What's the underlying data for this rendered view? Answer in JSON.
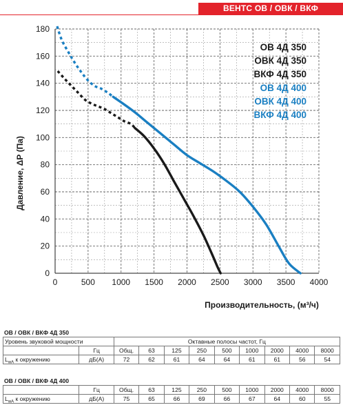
{
  "header": {
    "badge": "ВЕНТС ОВ / ОВК / ВКФ"
  },
  "chart_data": {
    "type": "line",
    "xlabel": "Производительность, (м³/ч)",
    "ylabel": "Давление, ΔР (Па)",
    "xlim": [
      0,
      4000
    ],
    "ylim": [
      0,
      180
    ],
    "xticks": [
      0,
      500,
      1000,
      1500,
      2000,
      2500,
      3000,
      3500,
      4000
    ],
    "yticks": [
      0,
      20,
      40,
      60,
      80,
      100,
      120,
      140,
      160,
      180
    ],
    "grid": true,
    "legend_placement": "top-right",
    "series": [
      {
        "name_lines": [
          "ОВ 4Д 350",
          "ОВК 4Д 350",
          "ВКФ 4Д 350"
        ],
        "color": "#1a1a1a",
        "dashed": [
          [
            40,
            149
          ],
          [
            150,
            143
          ],
          [
            250,
            138
          ],
          [
            350,
            133
          ],
          [
            450,
            128
          ],
          [
            550,
            125
          ],
          [
            650,
            123
          ],
          [
            750,
            121
          ],
          [
            850,
            118
          ],
          [
            950,
            115
          ],
          [
            1050,
            112
          ],
          [
            1150,
            110
          ],
          [
            1210,
            107
          ]
        ],
        "solid": [
          [
            1210,
            107
          ],
          [
            1350,
            101
          ],
          [
            1500,
            92
          ],
          [
            1650,
            81
          ],
          [
            1800,
            68
          ],
          [
            1950,
            55
          ],
          [
            2100,
            42
          ],
          [
            2250,
            28
          ],
          [
            2380,
            14
          ],
          [
            2460,
            5
          ],
          [
            2510,
            0
          ]
        ]
      },
      {
        "name_lines": [
          "ОВ 4Д 400",
          "ОВК 4Д 400",
          "ВКФ 4Д 400"
        ],
        "color": "#1a7fc2",
        "dashed": [
          [
            30,
            182
          ],
          [
            100,
            172
          ],
          [
            200,
            163
          ],
          [
            300,
            155
          ],
          [
            400,
            148
          ],
          [
            500,
            142
          ],
          [
            600,
            138
          ],
          [
            700,
            136
          ],
          [
            800,
            133
          ],
          [
            880,
            130
          ]
        ],
        "solid": [
          [
            880,
            130
          ],
          [
            1000,
            126
          ],
          [
            1200,
            119
          ],
          [
            1400,
            111
          ],
          [
            1600,
            103
          ],
          [
            1800,
            95
          ],
          [
            2000,
            87
          ],
          [
            2200,
            81
          ],
          [
            2400,
            75
          ],
          [
            2600,
            68
          ],
          [
            2800,
            60
          ],
          [
            3000,
            49
          ],
          [
            3200,
            36
          ],
          [
            3400,
            19
          ],
          [
            3550,
            7
          ],
          [
            3720,
            0
          ]
        ]
      }
    ]
  },
  "tables": [
    {
      "title": "ОВ / ОВК / ВКФ 4Д 350",
      "row1_label": "Уровень звуковой мощности",
      "row1_bands": "Октавные полосы частот, Гц",
      "row2_unit": "Гц",
      "row2_cells": [
        "Общ.",
        "63",
        "125",
        "250",
        "500",
        "1000",
        "2000",
        "4000",
        "8000"
      ],
      "row3_label_pre": "L",
      "row3_label_sub": "wA",
      "row3_label_post": " к окружению",
      "row3_unit": "дБ(А)",
      "row3_cells": [
        "72",
        "62",
        "61",
        "64",
        "64",
        "61",
        "61",
        "56",
        "54"
      ]
    },
    {
      "title": "ОВ / ОВК / ВКФ 4Д 400",
      "row2_unit": "Гц",
      "row2_cells": [
        "Общ.",
        "63",
        "125",
        "250",
        "500",
        "1000",
        "2000",
        "4000",
        "8000"
      ],
      "row3_label_pre": "L",
      "row3_label_sub": "wA",
      "row3_label_post": " к окружению",
      "row3_unit": "дБ(А)",
      "row3_cells": [
        "75",
        "65",
        "66",
        "69",
        "66",
        "67",
        "64",
        "60",
        "55"
      ]
    }
  ]
}
